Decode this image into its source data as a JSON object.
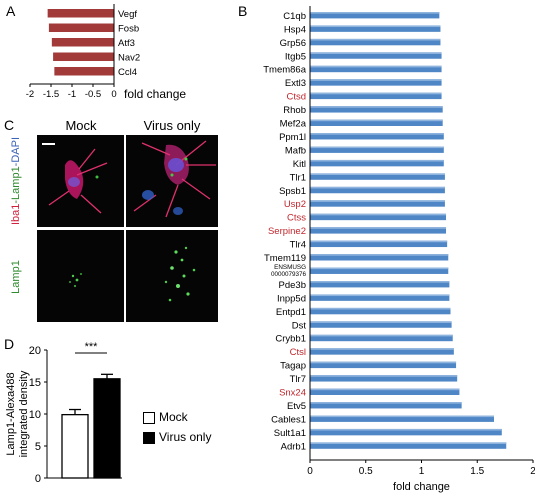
{
  "panels": {
    "a": "A",
    "b": "B",
    "c": "C",
    "d": "D"
  },
  "panel_a": {
    "chart_data": {
      "type": "bar",
      "orientation": "horizontal",
      "categories": [
        "Vegf",
        "Fosb",
        "Atf3",
        "Nav2",
        "Ccl4"
      ],
      "values": [
        -1.58,
        -1.55,
        -1.48,
        -1.45,
        -1.42
      ],
      "xlabel": "fold change",
      "xlim": [
        -2,
        0
      ],
      "xticks": [
        "-2",
        "-1.5",
        "-1",
        "-0.5",
        "0"
      ],
      "bar_color": "#a23a3a"
    }
  },
  "panel_b": {
    "chart_data": {
      "type": "bar",
      "orientation": "horizontal",
      "categories": [
        "C1qb",
        "Hsp4",
        "Grp56",
        "Itgb5",
        "Tmem86a",
        "Extl3",
        "Ctsd",
        "Rhob",
        "Mef2a",
        "Ppm1l",
        "Mafb",
        "Kitl",
        "Tlr1",
        "Spsb1",
        "Usp2",
        "Ctss",
        "Serpine2",
        "Tlr4",
        "Tmem119",
        "ENSMUSG 0000079376",
        "Pde3b",
        "Inpp5d",
        "Entpd1",
        "Dst",
        "Crybb1",
        "Ctsl",
        "Tagap",
        "Tlr7",
        "Snx24",
        "Etv5",
        "Cables1",
        "Sult1a1",
        "Adrb1"
      ],
      "values": [
        1.16,
        1.17,
        1.17,
        1.18,
        1.18,
        1.18,
        1.18,
        1.19,
        1.19,
        1.2,
        1.2,
        1.2,
        1.21,
        1.21,
        1.21,
        1.22,
        1.22,
        1.23,
        1.24,
        1.24,
        1.25,
        1.25,
        1.26,
        1.27,
        1.28,
        1.29,
        1.31,
        1.32,
        1.34,
        1.36,
        1.65,
        1.72,
        1.76
      ],
      "highlighted": [
        "Ctsd",
        "Usp2",
        "Ctss",
        "Serpine2",
        "Ctsl",
        "Snx24"
      ],
      "xlabel": "fold change",
      "xlim": [
        0,
        2
      ],
      "xticks": [
        "0",
        "0.5",
        "1",
        "1.5",
        "2"
      ],
      "bar_color": "#4f86c6",
      "highlight_label_color": "#c0272d"
    }
  },
  "panel_c": {
    "col_mock": "Mock",
    "col_virus": "Virus only",
    "row1_iba1": "Iba1",
    "row1_lamp1": "-Lamp1",
    "row1_dapi": "-DAPI",
    "row2_lamp1": "Lamp1"
  },
  "panel_d": {
    "chart_data": {
      "type": "bar",
      "categories": [
        "Mock",
        "Virus only"
      ],
      "values": [
        9.9,
        15.5
      ],
      "errors": [
        0.8,
        0.7
      ],
      "ylabel_line1": "Lamp1-Alexa488",
      "ylabel_line2": "integrated density",
      "ylim": [
        0,
        20
      ],
      "yticks": [
        "0",
        "5",
        "10",
        "15",
        "20"
      ],
      "significance": "***",
      "legend": [
        {
          "label": "Mock",
          "fill": "#ffffff"
        },
        {
          "label": "Virus only",
          "fill": "#000000"
        }
      ]
    }
  }
}
